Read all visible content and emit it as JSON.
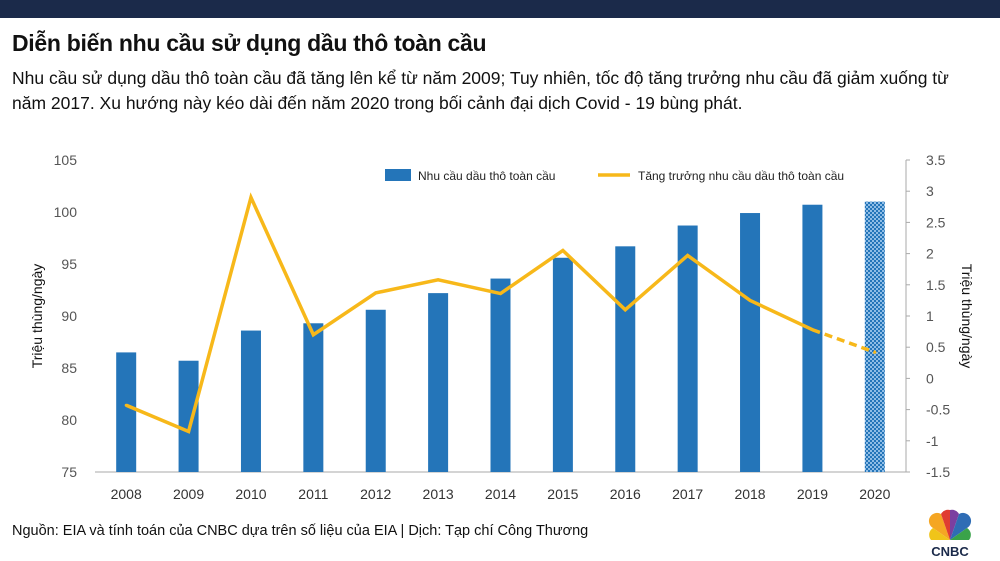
{
  "header": {
    "title": "Diễn biến nhu cầu sử dụng dầu thô toàn cầu",
    "subtitle": "Nhu cầu sử dụng dầu thô toàn cầu đã tăng lên kể từ năm 2009; Tuy nhiên, tốc độ tăng trưởng nhu cầu đã giảm xuống từ năm 2017. Xu hướng này kéo dài đến năm 2020 trong bối cảnh đại dịch Covid - 19 bùng phát."
  },
  "footer": {
    "source": "Nguồn: EIA và tính toán của CNBC dựa trên số liệu của EIA | Dịch: Tạp chí Công Thương",
    "logo_text": "CNBC"
  },
  "colors": {
    "bar": "#2475b9",
    "line": "#f7b81a",
    "forecast_bar": "#2475b9",
    "axis_text": "#555555"
  },
  "chart_data": {
    "type": "bar",
    "categories": [
      "2008",
      "2009",
      "2010",
      "2011",
      "2012",
      "2013",
      "2014",
      "2015",
      "2016",
      "2017",
      "2018",
      "2019",
      "2020"
    ],
    "series": [
      {
        "name": "Nhu cầu dầu thô toàn cầu",
        "type": "bar",
        "axis": "left",
        "values": [
          86.5,
          85.7,
          88.6,
          89.3,
          90.6,
          92.2,
          93.6,
          95.6,
          96.7,
          98.7,
          99.9,
          100.7,
          101.0
        ],
        "hatched_last": true
      },
      {
        "name": "Tăng trưởng nhu cầu dầu thô toàn cầu",
        "type": "line",
        "axis": "right",
        "values": [
          -0.43,
          -0.85,
          2.9,
          0.7,
          1.37,
          1.58,
          1.36,
          2.05,
          1.1,
          1.97,
          1.25,
          0.78,
          0.42
        ],
        "dashed_from_index": 11
      }
    ],
    "ylabel": "Triệu thùng/ngày",
    "y2label": "Triệu thùng/ngày",
    "ylim": [
      75,
      105
    ],
    "y2lim": [
      -1.5,
      3.5
    ],
    "yticks": [
      "75",
      "80",
      "85",
      "90",
      "95",
      "100",
      "105"
    ],
    "y2ticks": [
      "-1.5",
      "-1",
      "-0.5",
      "0",
      "0.5",
      "1",
      "1.5",
      "2",
      "2.5",
      "3",
      "3.5"
    ],
    "grid": false,
    "legend": "top"
  }
}
